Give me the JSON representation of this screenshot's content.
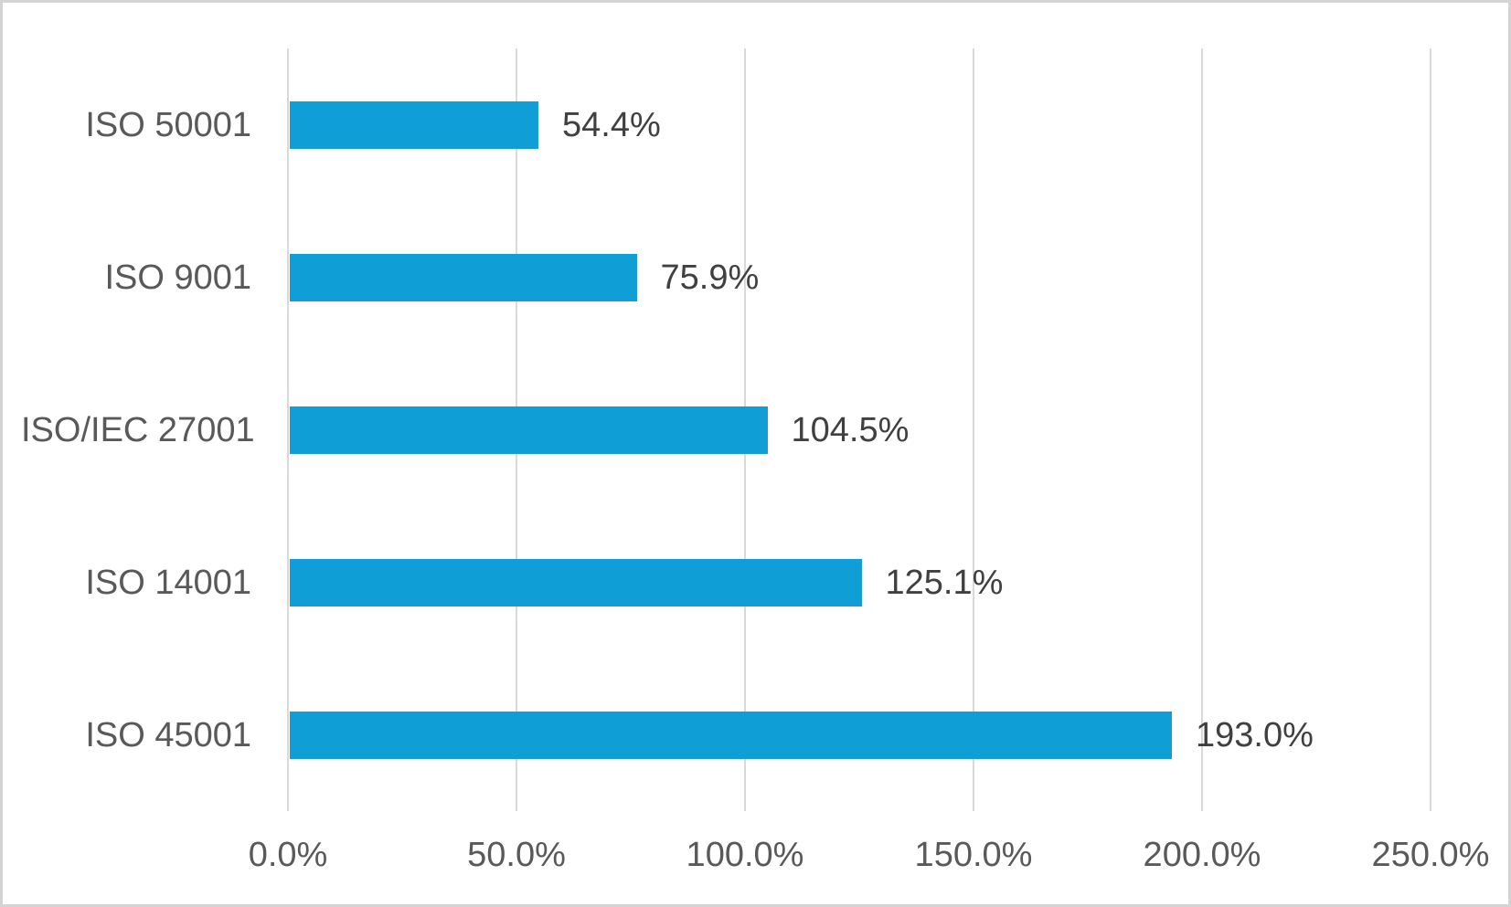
{
  "chart": {
    "background_color": "#FFFFFF",
    "border_color": "#D4D4D4",
    "bar_color": "#0F9ED5",
    "gridline_color": "#D9D9D9",
    "category_label_color": "#595959",
    "axis_label_color": "#595959",
    "data_label_color": "#404040"
  },
  "chart_data": {
    "type": "bar",
    "orientation": "horizontal",
    "title": "",
    "xlabel": "",
    "ylabel": "",
    "legend": "none",
    "grid": "vertical gridlines on",
    "categories": [
      "ISO 50001",
      "ISO 9001",
      "ISO/IEC 27001",
      "ISO 14001",
      "ISO 45001"
    ],
    "values": [
      54.4,
      75.9,
      104.5,
      125.1,
      193.0
    ],
    "data_labels": [
      "54.4%",
      "75.9%",
      "104.5%",
      "125.1%",
      "193.0%"
    ],
    "x_axis": {
      "min": 0,
      "max": 250,
      "tick_values": [
        0,
        50,
        100,
        150,
        200,
        250
      ],
      "tick_labels": [
        "0.0%",
        "50.0%",
        "100.0%",
        "150.0%",
        "200.0%",
        "250.0%"
      ]
    }
  }
}
